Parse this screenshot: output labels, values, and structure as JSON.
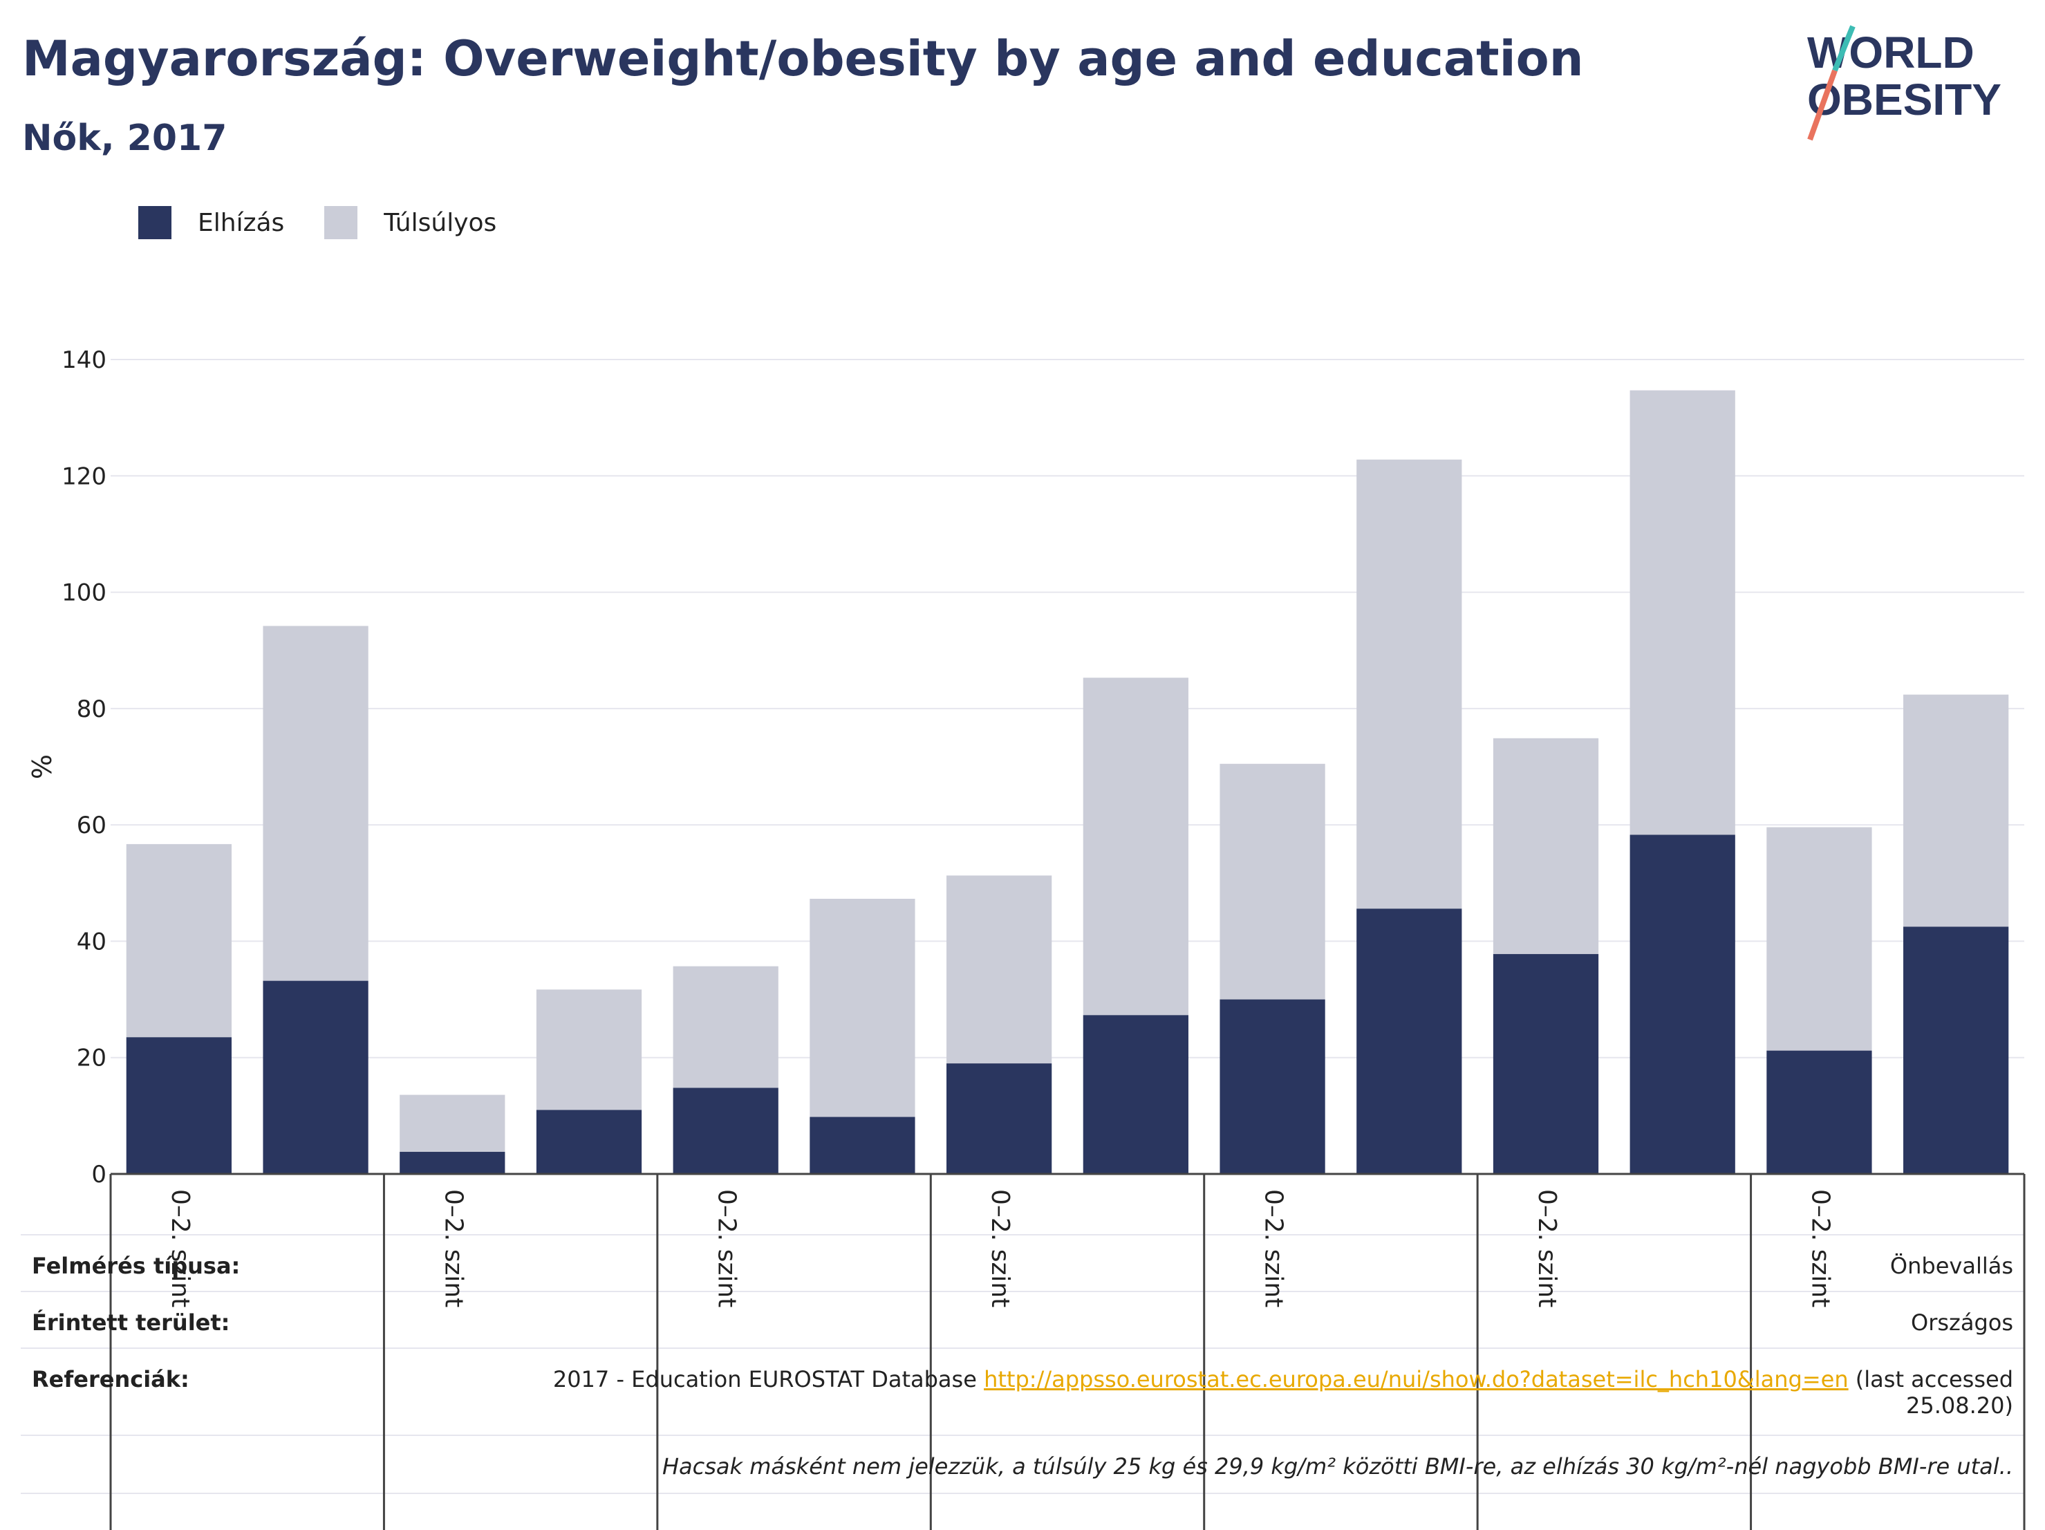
{
  "header": {
    "title": "Magyarország: Overweight/obesity by age and education",
    "subtitle": "Nők, 2017"
  },
  "logo": {
    "line1": "WORLD",
    "line2": "OBESITY"
  },
  "colors": {
    "obesity": "#2a365f",
    "overweight": "#cbcdd8",
    "title": "#2a365f",
    "link": "#e8a800",
    "grid": "#e6e6ee"
  },
  "chart_data": {
    "type": "bar",
    "stacked": true,
    "ylabel": "%",
    "ylim": [
      0,
      140
    ],
    "yticks": [
      0,
      20,
      40,
      60,
      80,
      100,
      120,
      140
    ],
    "group_labels": [
      "0–2. szint",
      "0–2. szint",
      "0–2. szint",
      "0–2. szint",
      "0–2. szint",
      "0–2. szint",
      "0–2. szint"
    ],
    "bars_per_group": 2,
    "grid": true,
    "legend_position": "top-left",
    "series": [
      {
        "name": "Elhízás",
        "color": "#2a365f",
        "values": [
          23.5,
          33.2,
          3.8,
          11.0,
          14.8,
          9.8,
          19.0,
          27.3,
          30.0,
          45.6,
          37.8,
          58.3,
          21.2,
          42.5
        ]
      },
      {
        "name": "Túlsúlyos",
        "color": "#cbcdd8",
        "values": [
          33.2,
          61.0,
          9.8,
          20.7,
          20.9,
          37.5,
          32.3,
          58.0,
          40.5,
          77.2,
          37.1,
          76.4,
          38.4,
          39.9
        ]
      }
    ]
  },
  "info": {
    "survey_label": "Felmérés típusa:",
    "survey_value": "Önbevallás",
    "area_label": "Érintett terület:",
    "area_value": "Országos",
    "ref_label": "Referenciák:",
    "ref_prefix": "2017 - Education EUROSTAT Database ",
    "ref_link": "http://appsso.eurostat.ec.europa.eu/nui/show.do?dataset=ilc_hch10&lang=en",
    "ref_suffix": " (last accessed",
    "ref_suffix2": "25.08.20)",
    "note": "Hacsak másként nem jelezzük, a túlsúly 25 kg és 29,9 kg/m² közötti BMI-re, az elhízás 30 kg/m²-nél nagyobb BMI-re utal.."
  }
}
